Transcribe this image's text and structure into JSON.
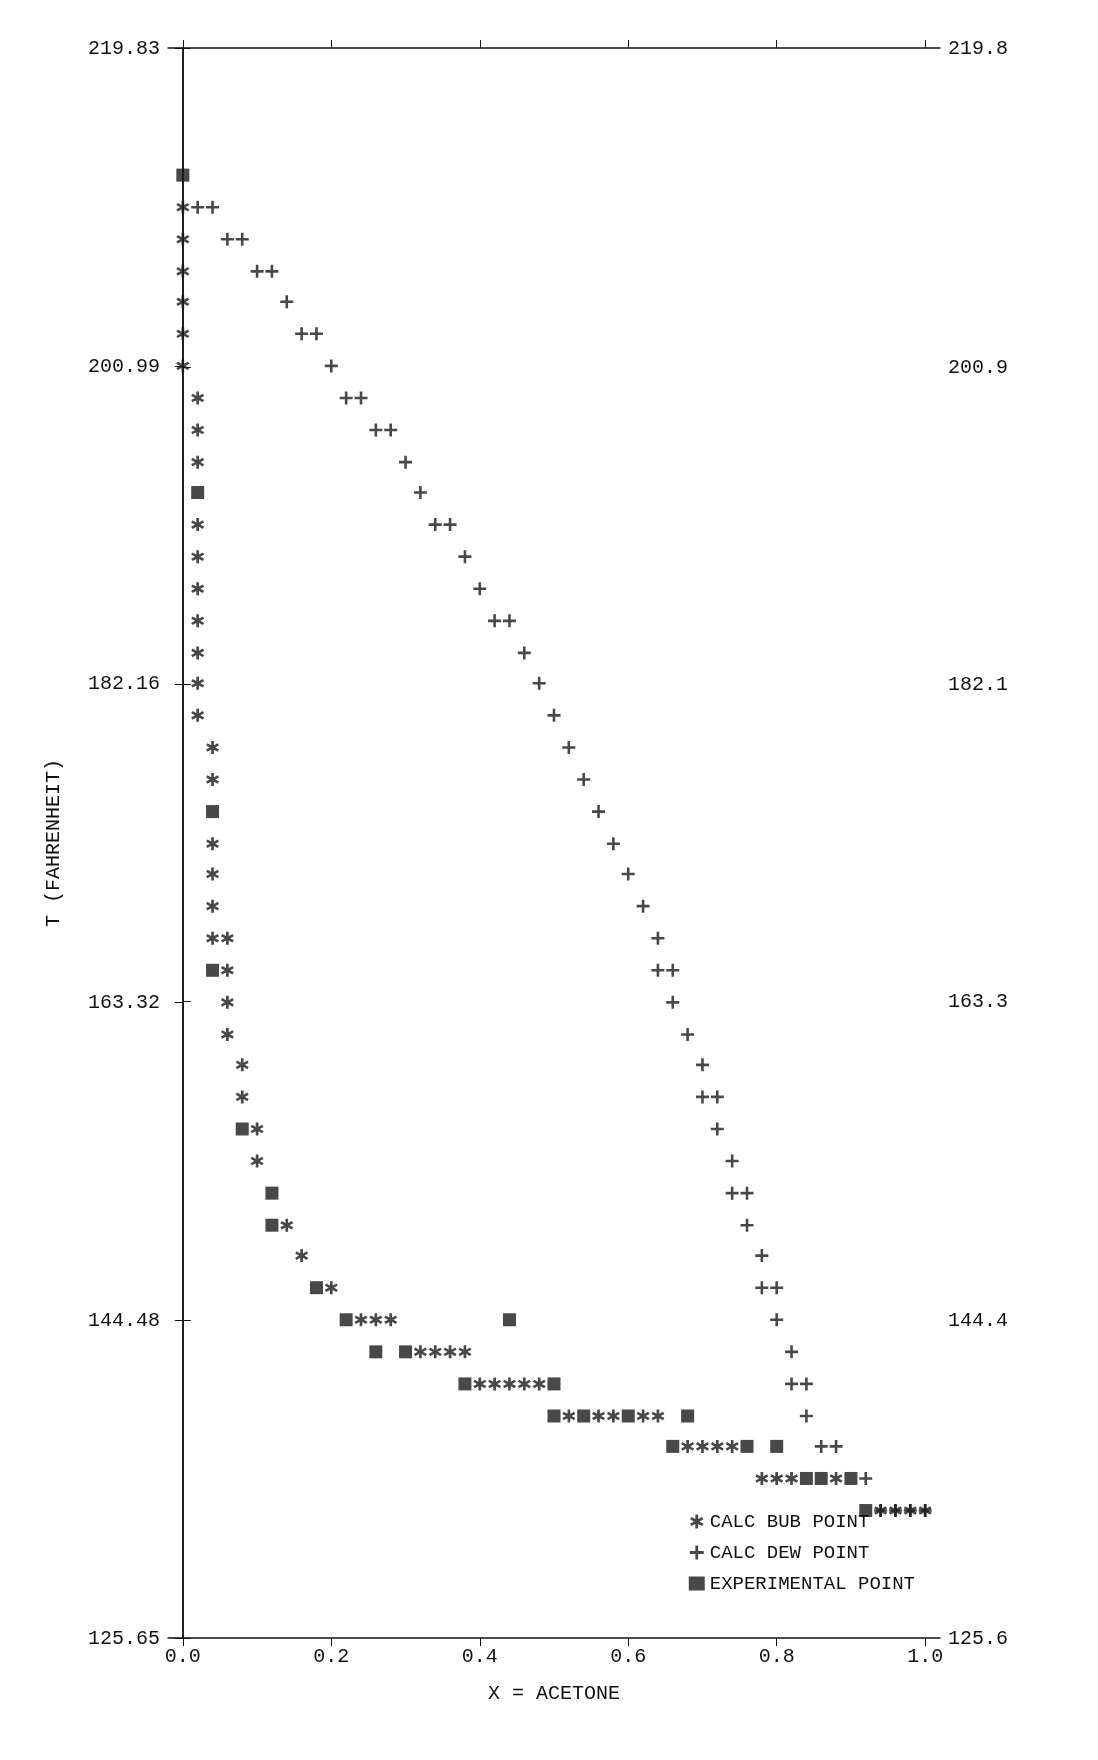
{
  "chart_data": {
    "type": "scatter",
    "xlabel": "X = ACETONE",
    "ylabel": "T (FAHRENHEIT)",
    "xlim": [
      -0.02,
      1.02
    ],
    "xticks": [
      {
        "value": 0,
        "label": "0.0"
      },
      {
        "value": 0.2,
        "label": "0.2"
      },
      {
        "value": 0.4,
        "label": "0.4"
      },
      {
        "value": 0.6,
        "label": "0.6"
      },
      {
        "value": 0.8,
        "label": "0.8"
      },
      {
        "value": 1,
        "label": "1.0"
      }
    ],
    "ylim": [
      125.65,
      219.83
    ],
    "yticks": [
      125.65,
      144.48,
      163.32,
      182.16,
      200.99,
      219.83
    ],
    "y2lim": [
      125.6,
      219.8
    ],
    "y2ticks": [
      125.6,
      144.4,
      163.3,
      182.1,
      200.9,
      219.8
    ],
    "grid": false,
    "legend": "bottom right",
    "series": [
      {
        "name": "CALC BUB POINT",
        "color": "#1a1a1a",
        "marker": "star",
        "x": [
          0,
          0,
          0,
          0,
          0,
          0,
          0.02,
          0.02,
          0.02,
          0.02,
          0.02,
          0.02,
          0.02,
          0.02,
          0.02,
          0.02,
          0.04,
          0.04,
          0.04,
          0.04,
          0.04,
          0.04,
          0.06,
          0.06,
          0.06,
          0.06,
          0.08,
          0.08,
          0.1,
          0.1,
          0.14,
          0.16,
          0.2,
          0.24,
          0.26,
          0.28,
          0.32,
          0.34,
          0.36,
          0.38,
          0.4,
          0.42,
          0.44,
          0.46,
          0.48,
          0.52,
          0.56,
          0.58,
          0.62,
          0.64,
          0.68,
          0.7,
          0.72,
          0.74,
          0.78,
          0.8,
          0.82,
          0.88,
          0.94,
          0.96,
          0.98,
          1
        ],
        "values": [
          210.4,
          208.5,
          206.6,
          204.8,
          202.9,
          201.0,
          199.1,
          197.2,
          195.3,
          191.6,
          189.7,
          187.8,
          185.9,
          184.0,
          182.2,
          180.3,
          178.4,
          176.5,
          172.7,
          170.9,
          169.0,
          167.1,
          167.1,
          165.2,
          163.3,
          161.4,
          159.6,
          157.7,
          155.8,
          153.9,
          150.1,
          148.3,
          146.4,
          144.5,
          144.5,
          144.5,
          142.6,
          142.6,
          142.6,
          142.6,
          140.7,
          140.7,
          140.7,
          140.7,
          140.7,
          138.8,
          138.8,
          138.8,
          138.8,
          138.8,
          137.0,
          137.0,
          137.0,
          137.0,
          135.1,
          135.1,
          135.1,
          135.1,
          133.2,
          133.2,
          133.2,
          133.2
        ]
      },
      {
        "name": "CALC DEW POINT",
        "color": "#1a1a1a",
        "marker": "cross",
        "x": [
          0.02,
          0.04,
          0.06,
          0.08,
          0.1,
          0.12,
          0.14,
          0.16,
          0.18,
          0.2,
          0.22,
          0.24,
          0.26,
          0.28,
          0.3,
          0.32,
          0.34,
          0.36,
          0.38,
          0.4,
          0.42,
          0.44,
          0.46,
          0.48,
          0.5,
          0.52,
          0.54,
          0.56,
          0.58,
          0.6,
          0.62,
          0.64,
          0.64,
          0.66,
          0.66,
          0.68,
          0.7,
          0.7,
          0.72,
          0.72,
          0.74,
          0.74,
          0.76,
          0.76,
          0.78,
          0.78,
          0.8,
          0.8,
          0.82,
          0.82,
          0.84,
          0.84,
          0.86,
          0.88,
          0.92,
          0.94,
          0.96,
          0.98,
          1
        ],
        "values": [
          210.4,
          210.4,
          208.5,
          208.5,
          206.6,
          206.6,
          204.8,
          202.9,
          202.9,
          201.0,
          199.1,
          199.1,
          197.2,
          197.2,
          195.3,
          193.5,
          191.6,
          191.6,
          189.7,
          187.8,
          185.9,
          185.9,
          184.0,
          182.2,
          180.3,
          178.4,
          176.5,
          174.6,
          172.7,
          170.9,
          169.0,
          167.1,
          165.2,
          165.2,
          163.3,
          161.4,
          159.6,
          157.7,
          157.7,
          155.8,
          153.9,
          152.0,
          152.0,
          150.1,
          148.3,
          146.4,
          146.4,
          144.5,
          142.6,
          140.7,
          140.7,
          138.8,
          137.0,
          137.0,
          135.1,
          133.2,
          133.2,
          133.2,
          133.2
        ]
      },
      {
        "name": "EXPERIMENTAL POINT",
        "color": "#1a1a1a",
        "marker": "square",
        "x": [
          0,
          0.02,
          0.04,
          0.04,
          0.08,
          0.12,
          0.12,
          0.18,
          0.22,
          0.44,
          0.26,
          0.3,
          0.38,
          0.5,
          0.5,
          0.54,
          0.6,
          0.68,
          0.66,
          0.76,
          0.8,
          0.84,
          0.86,
          0.9,
          0.92
        ],
        "values": [
          212.3,
          193.5,
          174.6,
          165.2,
          155.8,
          152.0,
          150.1,
          146.4,
          144.5,
          144.5,
          142.6,
          142.6,
          140.7,
          140.7,
          138.8,
          138.8,
          138.8,
          138.8,
          137.0,
          137.0,
          137.0,
          135.1,
          135.1,
          135.1,
          133.2
        ]
      }
    ]
  }
}
